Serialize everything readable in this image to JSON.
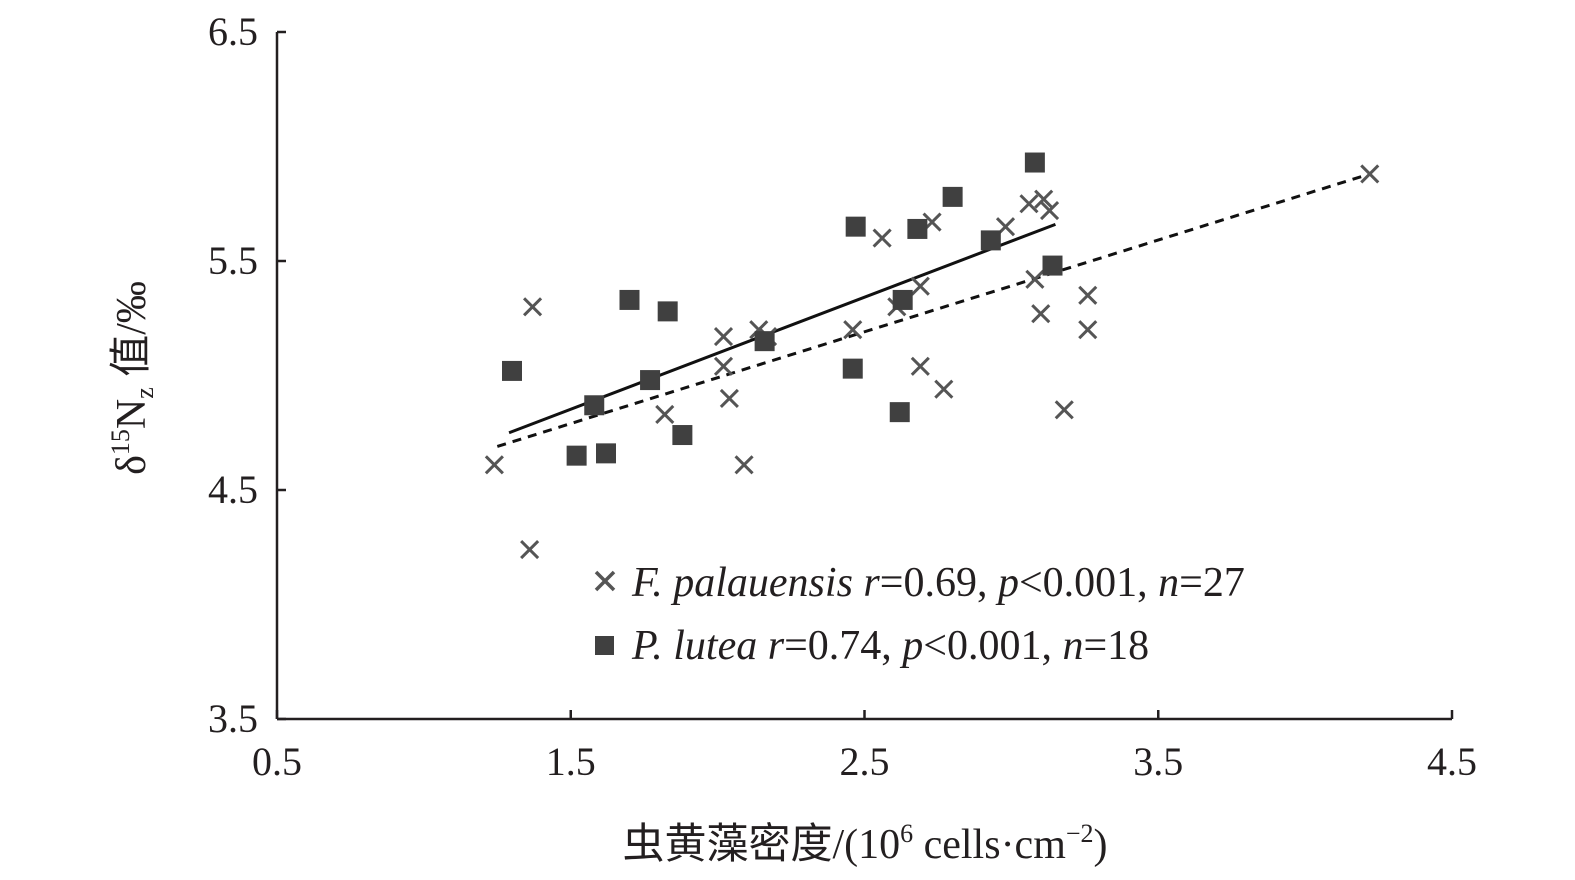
{
  "chart_data": {
    "type": "scatter",
    "xlim": [
      0.5,
      4.5
    ],
    "ylim": [
      3.5,
      6.5
    ],
    "x_ticks": [
      "0.5",
      "1.5",
      "2.5",
      "3.5",
      "4.5"
    ],
    "y_ticks": [
      "3.5",
      "4.5",
      "5.5",
      "6.5"
    ],
    "xlabel": {
      "main": "虫黄藻密度/(10",
      "sup": "6",
      "rest": " cells·cm",
      "sup2": "−2",
      "end": ")"
    },
    "ylabel": {
      "delta": "δ",
      "sup": "15",
      "n": "N",
      "sub": "z",
      "rest": " 值/‰"
    },
    "grid": false,
    "legend_position": "bottom-right",
    "series": [
      {
        "name": "F. palauensis",
        "stats": {
          "r_label": "r",
          "r_value": "=0.69, ",
          "p_label": "p",
          "p_value": "<0.001, ",
          "n_label": "n",
          "n_value": "=27"
        },
        "marker": "x",
        "color": "#555555",
        "trendline": "dashed",
        "trend_start": [
          1.25,
          4.69
        ],
        "trend_end": [
          4.22,
          5.88
        ],
        "points": [
          [
            1.24,
            4.61
          ],
          [
            1.36,
            4.24
          ],
          [
            1.37,
            5.3
          ],
          [
            1.82,
            4.83
          ],
          [
            2.02,
            5.17
          ],
          [
            2.02,
            5.04
          ],
          [
            2.04,
            4.9
          ],
          [
            2.09,
            4.61
          ],
          [
            2.14,
            5.2
          ],
          [
            2.17,
            5.17
          ],
          [
            2.46,
            5.2
          ],
          [
            2.56,
            5.6
          ],
          [
            2.61,
            5.3
          ],
          [
            2.69,
            5.39
          ],
          [
            2.69,
            5.04
          ],
          [
            2.73,
            5.67
          ],
          [
            2.77,
            4.94
          ],
          [
            2.98,
            5.65
          ],
          [
            3.06,
            5.75
          ],
          [
            3.08,
            5.42
          ],
          [
            3.1,
            5.27
          ],
          [
            3.11,
            5.77
          ],
          [
            3.13,
            5.72
          ],
          [
            3.18,
            4.85
          ],
          [
            3.26,
            5.35
          ],
          [
            3.26,
            5.2
          ],
          [
            4.22,
            5.88
          ]
        ]
      },
      {
        "name": "P. lutea",
        "stats": {
          "r_label": "r",
          "r_value": "=0.74, ",
          "p_label": "p",
          "p_value": "<0.001, ",
          "n_label": "n",
          "n_value": "=18"
        },
        "marker": "square",
        "color": "#404040",
        "trendline": "solid",
        "trend_start": [
          1.29,
          4.75
        ],
        "trend_end": [
          3.15,
          5.66
        ],
        "points": [
          [
            1.3,
            5.02
          ],
          [
            1.52,
            4.65
          ],
          [
            1.58,
            4.87
          ],
          [
            1.62,
            4.66
          ],
          [
            1.7,
            5.33
          ],
          [
            1.77,
            4.98
          ],
          [
            1.83,
            5.28
          ],
          [
            1.88,
            4.74
          ],
          [
            2.16,
            5.15
          ],
          [
            2.46,
            5.03
          ],
          [
            2.47,
            5.65
          ],
          [
            2.62,
            4.84
          ],
          [
            2.63,
            5.33
          ],
          [
            2.68,
            5.64
          ],
          [
            2.8,
            5.78
          ],
          [
            2.93,
            5.59
          ],
          [
            3.08,
            5.93
          ],
          [
            3.14,
            5.48
          ]
        ]
      }
    ]
  }
}
